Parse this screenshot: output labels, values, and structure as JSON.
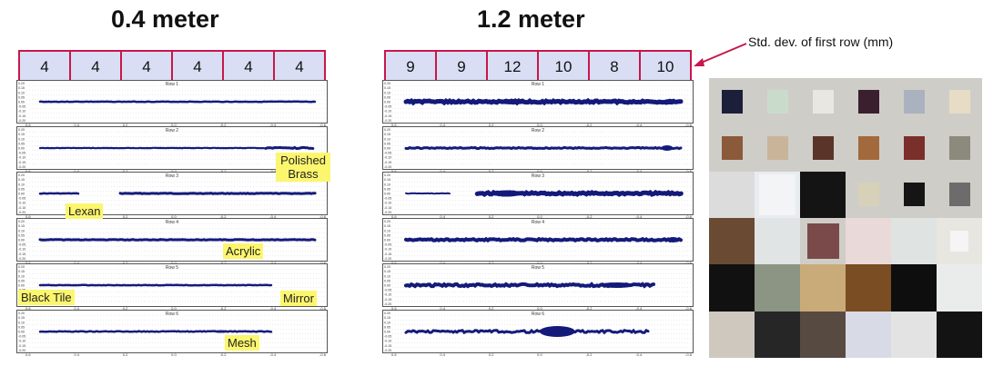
{
  "panels": [
    {
      "title": "0.4 meter",
      "std_devs": [
        "4",
        "4",
        "4",
        "4",
        "4",
        "4"
      ]
    },
    {
      "title": "1.2 meter",
      "std_devs": [
        "9",
        "9",
        "12",
        "10",
        "8",
        "10"
      ]
    }
  ],
  "annotation": "Std. dev. of first row (mm)",
  "row_labels": [
    "Row 1",
    "Row 2",
    "Row 3",
    "Row 4",
    "Row 5",
    "Row 6"
  ],
  "x_ticks": [
    "0.6",
    "0.4",
    "0.2",
    "0.0",
    "-0.2",
    "-0.4",
    "-0.6"
  ],
  "y_ticks": [
    "0.20",
    "0.15",
    "0.10",
    "0.05",
    "0.00",
    "-0.05",
    "-0.10",
    "-0.15",
    "-0.20"
  ],
  "material_labels": {
    "polished_brass": "Polished Brass",
    "lexan": "Lexan",
    "acrylic": "Acrylic",
    "black_tile": "Black Tile",
    "mirror": "Mirror",
    "mesh": "Mesh"
  },
  "colors": {
    "trace": "#141a7a",
    "box_border": "#c8174a",
    "box_fill": "#d9def4",
    "highlight": "#fcf66e"
  }
}
